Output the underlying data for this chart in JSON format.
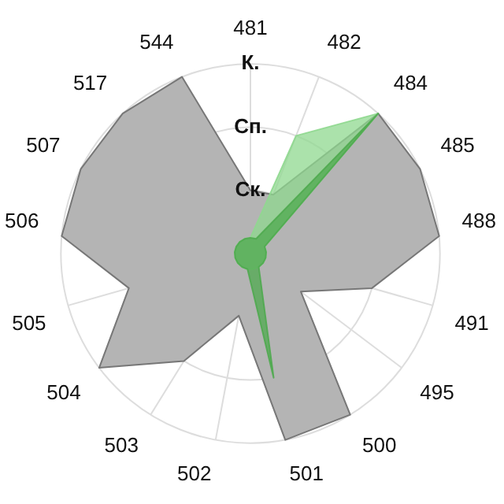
{
  "chart_data": {
    "type": "radar",
    "categories": [
      "481",
      "482",
      "484",
      "485",
      "488",
      "491",
      "495",
      "500",
      "501",
      "502",
      "503",
      "504",
      "505",
      "506",
      "507",
      "517",
      "544"
    ],
    "ylim": [
      0,
      3
    ],
    "yticks": [
      {
        "value": 1,
        "label": "Ск."
      },
      {
        "value": 2,
        "label": "Сп."
      },
      {
        "value": 3,
        "label": "К."
      }
    ],
    "grid": true,
    "legend": false,
    "marker": "none",
    "series": [
      {
        "color": "#b4b4b4",
        "values": [
          1,
          1,
          3,
          3,
          3,
          2,
          1,
          3,
          3,
          1,
          2,
          3,
          2,
          3,
          3,
          3,
          3
        ]
      },
      {
        "color": "#8fd88f",
        "values": [
          0.25,
          2,
          3,
          0.25,
          0.25,
          0.25,
          0.25,
          0.25,
          0.25,
          0.25,
          0.25,
          0.25,
          0.25,
          0.25,
          0.25,
          0.25,
          0.25
        ]
      },
      {
        "color": "#4faa4f",
        "values": [
          0.25,
          0.25,
          3,
          0.25,
          0.25,
          0.25,
          0.25,
          0.25,
          2,
          0.25,
          0.25,
          0.25,
          0.25,
          0.25,
          0.25,
          0.25,
          0.25
        ]
      }
    ]
  }
}
